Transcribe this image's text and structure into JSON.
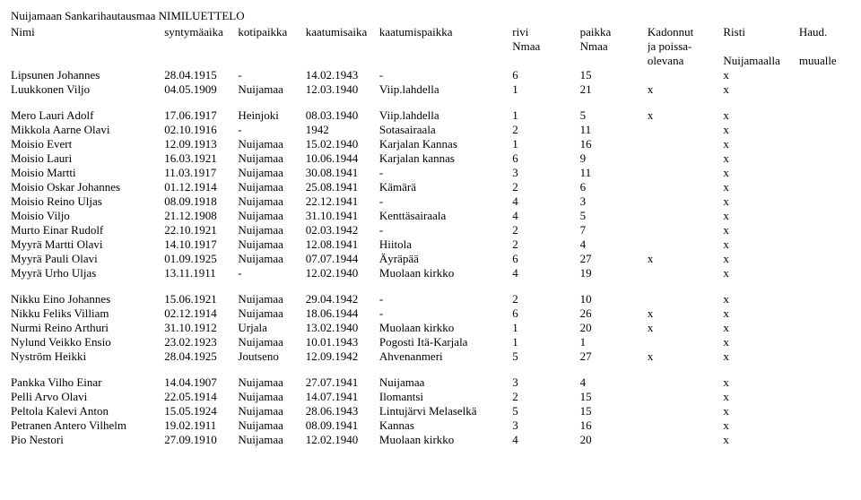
{
  "title": "Nuijamaan Sankarihautausmaa NIMILUETTELO",
  "header": {
    "name": "Nimi",
    "dob": "syntymäaika",
    "home": "kotipaikka",
    "dod": "kaatumisaika",
    "place": "kaatumispaikka",
    "row1": "rivi",
    "row2": "Nmaa",
    "seat1": "paikka",
    "seat2": "Nmaa",
    "mia1": "Kadonnut",
    "mia2": "ja poissa-",
    "mia3": "olevana",
    "cross1": "Risti",
    "cross2": "",
    "cross3": "Nuijamaalla",
    "bury1": "Haud.",
    "bury2": "",
    "bury3": "muualle"
  },
  "groups": [
    [
      {
        "name": "Lipsunen Johannes",
        "dob": "28.04.1915",
        "home": "-",
        "dod": "14.02.1943",
        "place": "-",
        "row": "6",
        "seat": "15",
        "mia": "",
        "cross": "x",
        "bury": ""
      },
      {
        "name": "Luukkonen Viljo",
        "dob": "04.05.1909",
        "home": "Nuijamaa",
        "dod": "12.03.1940",
        "place": "Viip.lahdella",
        "row": "1",
        "seat": "21",
        "mia": "x",
        "cross": "x",
        "bury": ""
      }
    ],
    [
      {
        "name": "Mero Lauri Adolf",
        "dob": "17.06.1917",
        "home": "Heinjoki",
        "dod": "08.03.1940",
        "place": "Viip.lahdella",
        "row": "1",
        "seat": "5",
        "mia": "x",
        "cross": "x",
        "bury": ""
      },
      {
        "name": "Mikkola Aarne Olavi",
        "dob": "02.10.1916",
        "home": "-",
        "dod": "1942",
        "place": "Sotasairaala",
        "row": "2",
        "seat": "11",
        "mia": "",
        "cross": "x",
        "bury": ""
      },
      {
        "name": "Moisio Evert",
        "dob": "12.09.1913",
        "home": "Nuijamaa",
        "dod": "15.02.1940",
        "place": "Karjalan Kannas",
        "row": "1",
        "seat": "16",
        "mia": "",
        "cross": "x",
        "bury": ""
      },
      {
        "name": "Moisio Lauri",
        "dob": "16.03.1921",
        "home": "Nuijamaa",
        "dod": "10.06.1944",
        "place": "Karjalan kannas",
        "row": "6",
        "seat": "9",
        "mia": "",
        "cross": "x",
        "bury": ""
      },
      {
        "name": "Moisio Martti",
        "dob": "11.03.1917",
        "home": "Nuijamaa",
        "dod": "30.08.1941",
        "place": "-",
        "row": "3",
        "seat": "11",
        "mia": "",
        "cross": "x",
        "bury": ""
      },
      {
        "name": "Moisio Oskar Johannes",
        "dob": "01.12.1914",
        "home": "Nuijamaa",
        "dod": "25.08.1941",
        "place": "Kämärä",
        "row": "2",
        "seat": "6",
        "mia": "",
        "cross": "x",
        "bury": ""
      },
      {
        "name": "Moisio Reino Uljas",
        "dob": "08.09.1918",
        "home": "Nuijamaa",
        "dod": "22.12.1941",
        "place": "-",
        "row": "4",
        "seat": "3",
        "mia": "",
        "cross": "x",
        "bury": ""
      },
      {
        "name": "Moisio Viljo",
        "dob": "21.12.1908",
        "home": "Nuijamaa",
        "dod": "31.10.1941",
        "place": "Kenttäsairaala",
        "row": "4",
        "seat": "5",
        "mia": "",
        "cross": "x",
        "bury": ""
      },
      {
        "name": "Murto Einar Rudolf",
        "dob": "22.10.1921",
        "home": "Nuijamaa",
        "dod": "02.03.1942",
        "place": "-",
        "row": "2",
        "seat": "7",
        "mia": "",
        "cross": "x",
        "bury": ""
      },
      {
        "name": "Myyrä Martti Olavi",
        "dob": "14.10.1917",
        "home": "Nuijamaa",
        "dod": "12.08.1941",
        "place": "Hiitola",
        "row": "2",
        "seat": "4",
        "mia": "",
        "cross": "x",
        "bury": ""
      },
      {
        "name": "Myyrä Pauli Olavi",
        "dob": "01.09.1925",
        "home": "Nuijamaa",
        "dod": "07.07.1944",
        "place": "Äyräpää",
        "row": "6",
        "seat": "27",
        "mia": "x",
        "cross": "x",
        "bury": ""
      },
      {
        "name": "Myyrä Urho Uljas",
        "dob": "13.11.1911",
        "home": "-",
        "dod": "12.02.1940",
        "place": "Muolaan kirkko",
        "row": "4",
        "seat": "19",
        "mia": "",
        "cross": "x",
        "bury": ""
      }
    ],
    [
      {
        "name": "Nikku Eino Johannes",
        "dob": "15.06.1921",
        "home": "Nuijamaa",
        "dod": "29.04.1942",
        "place": "-",
        "row": "2",
        "seat": "10",
        "mia": "",
        "cross": "x",
        "bury": ""
      },
      {
        "name": "Nikku Feliks Villiam",
        "dob": "02.12.1914",
        "home": "Nuijamaa",
        "dod": "18.06.1944",
        "place": "-",
        "row": "6",
        "seat": "26",
        "mia": "x",
        "cross": "x",
        "bury": ""
      },
      {
        "name": "Nurmi Reino Arthuri",
        "dob": "31.10.1912",
        "home": "Urjala",
        "dod": "13.02.1940",
        "place": "Muolaan kirkko",
        "row": "1",
        "seat": "20",
        "mia": "x",
        "cross": "x",
        "bury": ""
      },
      {
        "name": "Nylund Veikko Ensio",
        "dob": "23.02.1923",
        "home": "Nuijamaa",
        "dod": "10.01.1943",
        "place": "Pogosti Itä-Karjala",
        "row": "1",
        "seat": "1",
        "mia": "",
        "cross": "x",
        "bury": ""
      },
      {
        "name": "Nyström Heikki",
        "dob": "28.04.1925",
        "home": "Joutseno",
        "dod": "12.09.1942",
        "place": "Ahvenanmeri",
        "row": "5",
        "seat": "27",
        "mia": "x",
        "cross": "x",
        "bury": ""
      }
    ],
    [
      {
        "name": "Pankka Vilho Einar",
        "dob": "14.04.1907",
        "home": "Nuijamaa",
        "dod": "27.07.1941",
        "place": "Nuijamaa",
        "row": "3",
        "seat": "4",
        "mia": "",
        "cross": "x",
        "bury": ""
      },
      {
        "name": "Pelli Arvo Olavi",
        "dob": "22.05.1914",
        "home": "Nuijamaa",
        "dod": "14.07.1941",
        "place": "Ilomantsi",
        "row": "2",
        "seat": "15",
        "mia": "",
        "cross": "x",
        "bury": ""
      },
      {
        "name": "Peltola Kalevi Anton",
        "dob": "15.05.1924",
        "home": "Nuijamaa",
        "dod": "28.06.1943",
        "place": "Lintujärvi Melaselkä",
        "row": "5",
        "seat": "15",
        "mia": "",
        "cross": "x",
        "bury": ""
      },
      {
        "name": "Petranen Antero Vilhelm",
        "dob": "19.02.1911",
        "home": "Nuijamaa",
        "dod": "08.09.1941",
        "place": "Kannas",
        "row": "3",
        "seat": "16",
        "mia": "",
        "cross": "x",
        "bury": ""
      },
      {
        "name": "Pio Nestori",
        "dob": "27.09.1910",
        "home": "Nuijamaa",
        "dod": "12.02.1940",
        "place": "Muolaan kirkko",
        "row": "4",
        "seat": "20",
        "mia": "",
        "cross": "x",
        "bury": ""
      }
    ]
  ]
}
